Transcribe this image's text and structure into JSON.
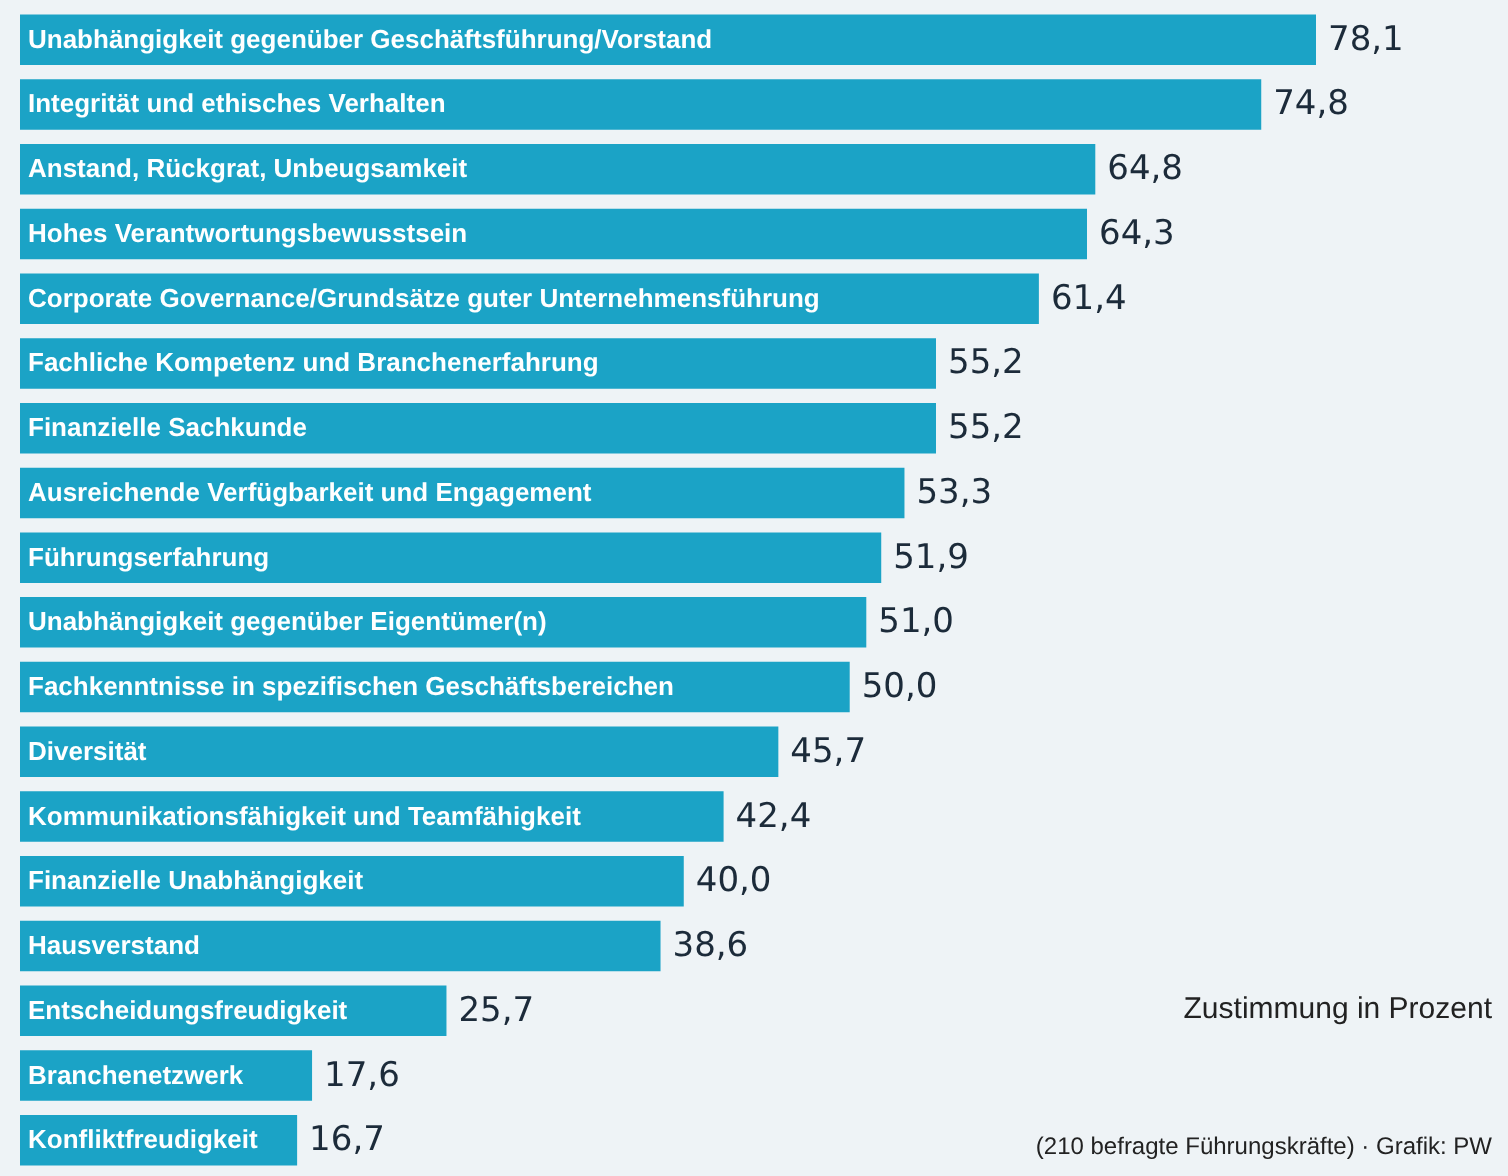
{
  "chart_data": {
    "type": "bar",
    "orientation": "horizontal",
    "categories": [
      "Unabhängigkeit gegenüber Geschäftsführung/Vorstand",
      "Integrität und ethisches Verhalten",
      "Anstand, Rückgrat, Unbeugsamkeit",
      "Hohes Verantwortungsbewusstsein",
      "Corporate Governance/Grundsätze guter Unternehmensführung",
      "Fachliche Kompetenz und Branchenerfahrung",
      "Finanzielle Sachkunde",
      "Ausreichende Verfügbarkeit und Engagement",
      "Führungserfahrung",
      "Unabhängigkeit gegenüber Eigentümer(n)",
      "Fachkenntnisse in spezifischen Geschäftsbereichen",
      "Diversität",
      "Kommunikationsfähigkeit und Teamfähigkeit",
      "Finanzielle Unabhängigkeit",
      "Hausverstand",
      "Entscheidungsfreudigkeit",
      "Branchenetzwerk",
      "Konfliktfreudigkeit"
    ],
    "values": [
      78.1,
      74.8,
      64.8,
      64.3,
      61.4,
      55.2,
      55.2,
      53.3,
      51.9,
      51.0,
      50.0,
      45.7,
      42.4,
      40.0,
      38.6,
      25.7,
      17.6,
      16.7
    ],
    "value_labels": [
      "78,1",
      "74,8",
      "64,8",
      "64,3",
      "61,4",
      "55,2",
      "55,2",
      "53,3",
      "51,9",
      "51,0",
      "50,0",
      "45,7",
      "42,4",
      "40,0",
      "38,6",
      "25,7",
      "17,6",
      "16,7"
    ],
    "color": "#1ba3c6",
    "annotations": [
      "Zustimmung in Prozent",
      "(210 befragte Führungskräfte) · Grafik: PW"
    ]
  }
}
